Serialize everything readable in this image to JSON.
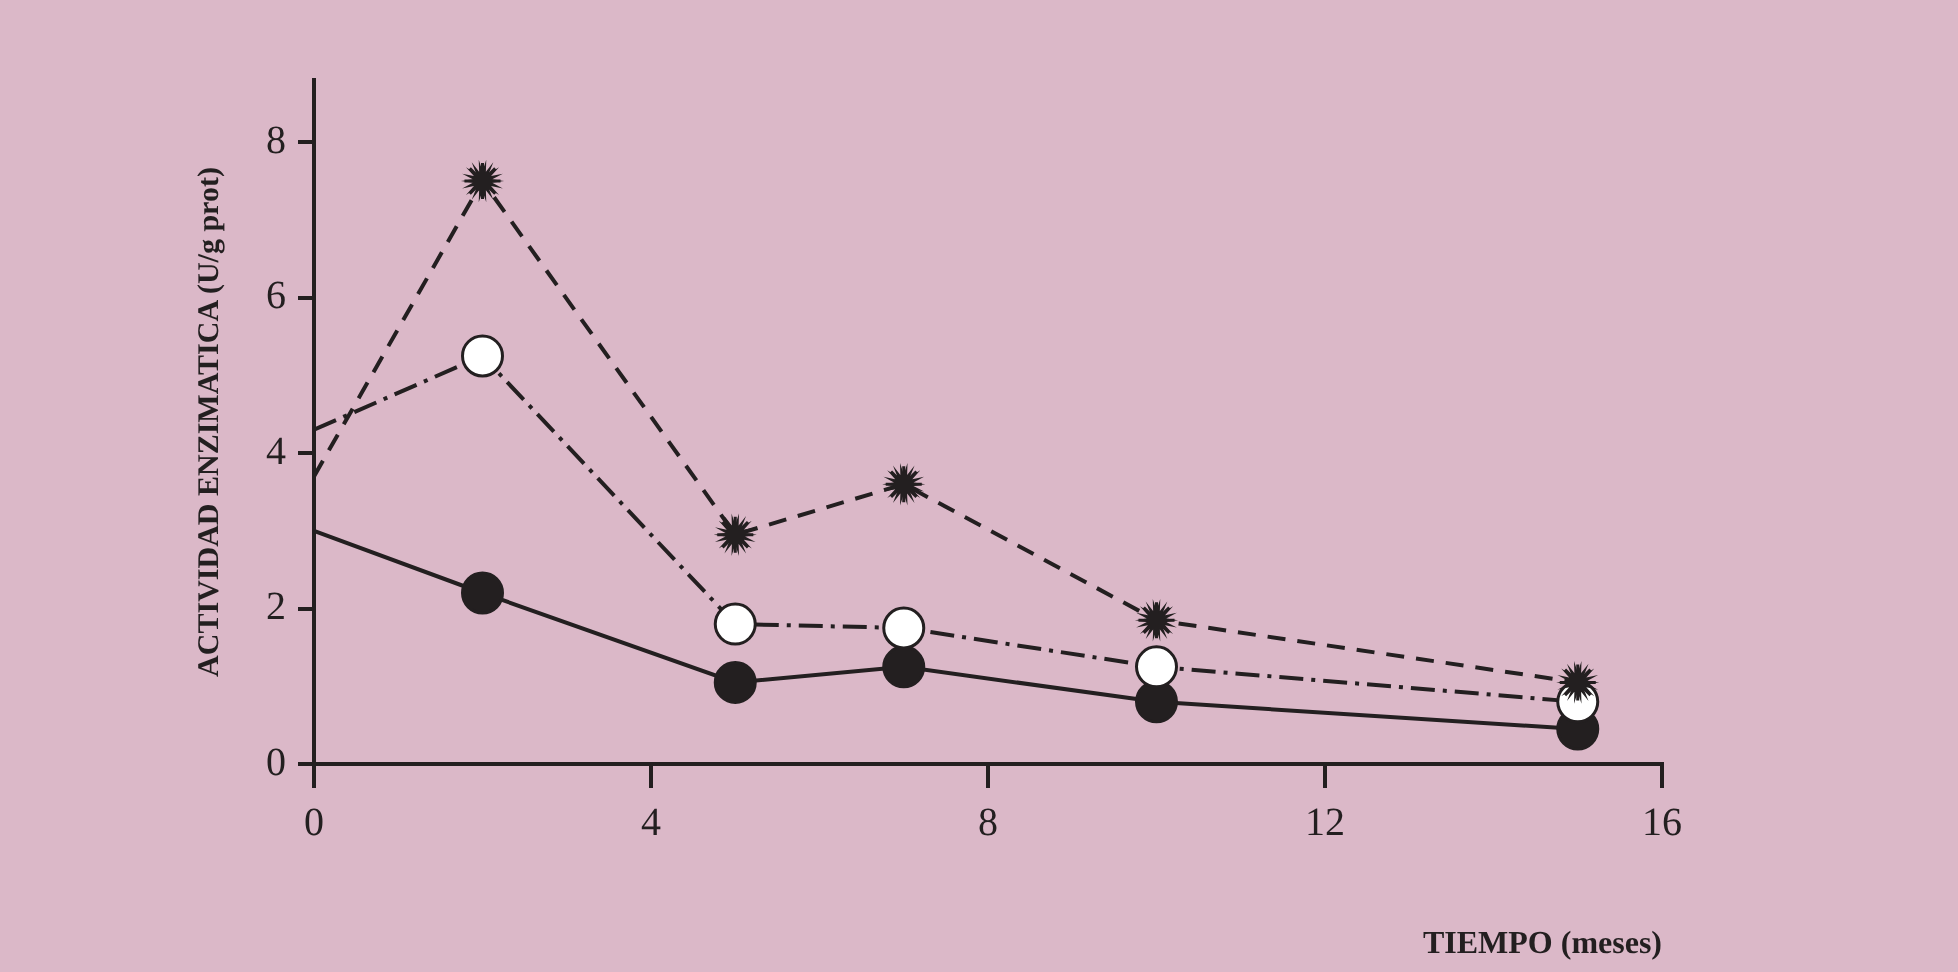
{
  "chart_data": {
    "type": "line",
    "xlabel": "TIEMPO (meses)",
    "ylabel": "ACTIVIDAD ENZIMATICA (U/g prot)",
    "x": [
      0,
      2,
      5,
      7,
      10,
      15
    ],
    "xlim": [
      0,
      16
    ],
    "xticks": [
      0,
      4,
      8,
      12,
      16
    ],
    "ylim": [
      0,
      8.8
    ],
    "yticks": [
      0,
      2,
      4,
      6,
      8
    ],
    "grid": false,
    "legend": false,
    "series": [
      {
        "color": "#231f20",
        "marker": "star",
        "line_style": "dashed",
        "values": [
          3.7,
          7.5,
          2.95,
          3.6,
          1.85,
          1.05
        ]
      },
      {
        "color": "#231f20",
        "colors": [
          "#231f20",
          "#ffffff",
          "#ffffff",
          "#ffffff",
          "#ffffff",
          "#ffffff"
        ],
        "marker": "circle",
        "line_style": "dashdot",
        "values": [
          4.3,
          5.25,
          1.8,
          1.75,
          1.25,
          0.8
        ]
      },
      {
        "color": "#231f20",
        "marker": "circle",
        "line_style": "solid",
        "values": [
          3.0,
          2.2,
          1.05,
          1.25,
          0.8,
          0.45
        ]
      }
    ]
  }
}
